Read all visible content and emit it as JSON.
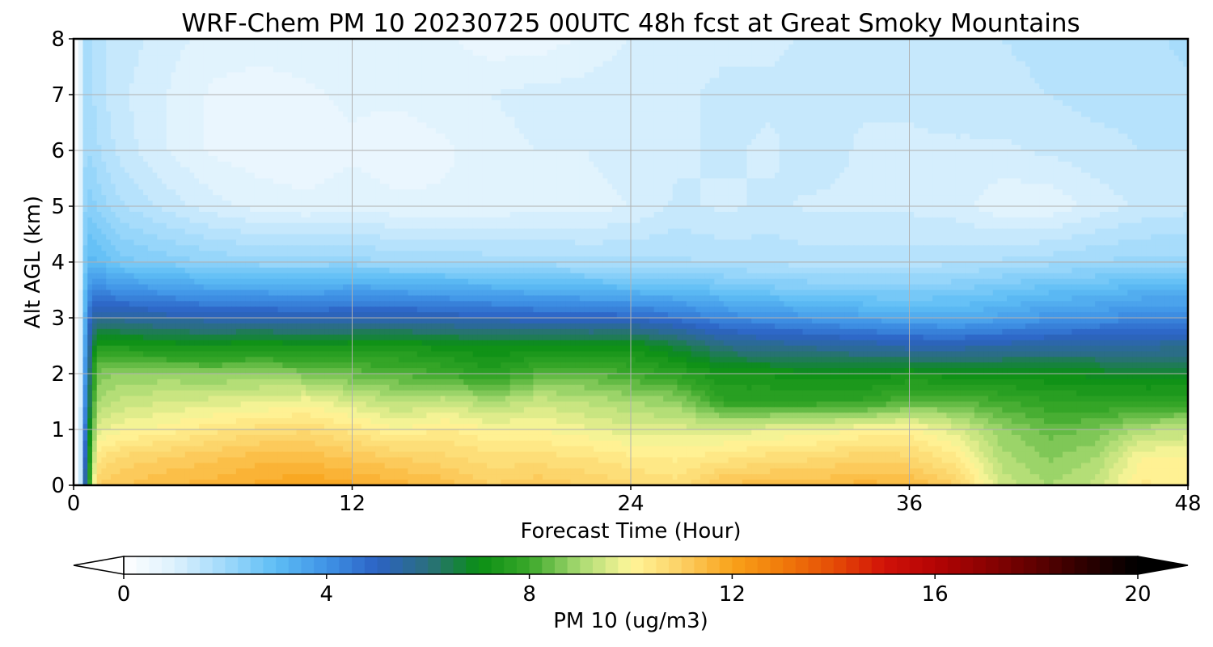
{
  "chart_data": {
    "type": "heatmap",
    "title": "WRF-Chem PM 10  20230725 00UTC 48h fcst at Great Smoky Mountains",
    "xlabel": "Forecast Time (Hour)",
    "ylabel": "Alt AGL (km)",
    "xlim": [
      0,
      48
    ],
    "ylim": [
      0,
      8
    ],
    "xticks": [
      0,
      12,
      24,
      36,
      48
    ],
    "xtick_labels": [
      "0",
      "12",
      "24",
      "36",
      "48"
    ],
    "yticks": [
      0,
      1,
      2,
      3,
      4,
      5,
      6,
      7,
      8
    ],
    "ytick_labels": [
      "0",
      "1",
      "2",
      "3",
      "4",
      "5",
      "6",
      "7",
      "8"
    ],
    "grid": true,
    "colorbar": {
      "label": "PM 10  (ug/m3)",
      "range": [
        0,
        20
      ],
      "ticks": [
        0,
        4,
        8,
        12,
        16,
        20
      ],
      "tick_labels": [
        "0",
        "4",
        "8",
        "12",
        "16",
        "20"
      ],
      "extend": "both",
      "orientation": "horizontal",
      "stops": [
        {
          "v": 0,
          "c": "#ffffff"
        },
        {
          "v": 1,
          "c": "#ddf1fd"
        },
        {
          "v": 2,
          "c": "#9fd9fb"
        },
        {
          "v": 3,
          "c": "#5ebdf5"
        },
        {
          "v": 4,
          "c": "#3f93e6"
        },
        {
          "v": 5,
          "c": "#2c62c4"
        },
        {
          "v": 6,
          "c": "#2b6f7e"
        },
        {
          "v": 7,
          "c": "#0a8f14"
        },
        {
          "v": 8,
          "c": "#3aa82a"
        },
        {
          "v": 9,
          "c": "#a9da72"
        },
        {
          "v": 10,
          "c": "#fff69a"
        },
        {
          "v": 11,
          "c": "#fcd064"
        },
        {
          "v": 12,
          "c": "#f9a21a"
        },
        {
          "v": 13,
          "c": "#f07a0a"
        },
        {
          "v": 14,
          "c": "#e54c06"
        },
        {
          "v": 15,
          "c": "#d11208"
        },
        {
          "v": 16,
          "c": "#b40404"
        },
        {
          "v": 17,
          "c": "#8c0202"
        },
        {
          "v": 18,
          "c": "#5e0101"
        },
        {
          "v": 19,
          "c": "#2b0000"
        },
        {
          "v": 20,
          "c": "#000000"
        }
      ]
    },
    "x": [
      0,
      0.25,
      0.5,
      0.75,
      1,
      2,
      4,
      6,
      8,
      10,
      12,
      14,
      16,
      18,
      20,
      22,
      24,
      26,
      28,
      30,
      32,
      34,
      36,
      38,
      40,
      42,
      44,
      46,
      48
    ],
    "y": [
      0,
      0.5,
      1,
      1.5,
      2,
      2.5,
      3,
      3.5,
      4,
      5,
      6,
      7,
      8
    ],
    "z": [
      [
        0,
        0.5,
        5.5,
        8.5,
        11.0,
        11.2,
        11.5,
        11.6,
        11.8,
        12.0,
        11.8,
        11.6,
        11.4,
        11.0,
        11.2,
        11.0,
        10.8,
        10.6,
        11.3,
        11.4,
        11.4,
        11.6,
        11.5,
        11.0,
        9.4,
        9.0,
        9.3,
        10.3,
        10.2
      ],
      [
        0,
        0.5,
        5.0,
        8.0,
        10.4,
        10.8,
        11.0,
        11.2,
        11.4,
        11.4,
        11.2,
        11.0,
        10.8,
        10.6,
        10.6,
        10.5,
        10.3,
        10.2,
        10.4,
        10.6,
        10.7,
        10.9,
        10.8,
        10.3,
        9.1,
        8.7,
        9.0,
        10.0,
        10.0
      ],
      [
        0,
        0.5,
        4.6,
        7.5,
        9.6,
        9.9,
        10.1,
        10.4,
        10.6,
        10.7,
        10.4,
        10.0,
        10.3,
        10.0,
        10.0,
        9.8,
        9.6,
        9.6,
        9.6,
        9.7,
        9.8,
        10.0,
        10.1,
        9.6,
        8.8,
        8.4,
        8.5,
        9.1,
        9.3
      ],
      [
        0,
        0.5,
        4.2,
        7.0,
        9.0,
        9.3,
        9.5,
        9.6,
        9.7,
        9.9,
        9.5,
        9.2,
        9.4,
        9.0,
        9.4,
        9.2,
        9.0,
        8.8,
        7.8,
        7.8,
        7.8,
        7.8,
        8.3,
        8.3,
        8.0,
        7.8,
        7.7,
        7.7,
        7.8
      ],
      [
        0,
        0.5,
        3.9,
        6.6,
        8.6,
        8.8,
        8.8,
        8.7,
        8.8,
        8.6,
        8.4,
        8.2,
        8.0,
        7.6,
        8.2,
        8.3,
        8.0,
        7.7,
        7.2,
        7.2,
        7.1,
        7.1,
        7.2,
        7.1,
        7.1,
        7.0,
        6.9,
        6.8,
        6.7
      ],
      [
        0,
        0.5,
        3.6,
        6.0,
        7.4,
        7.4,
        7.2,
        7.1,
        7.3,
        7.1,
        7.2,
        7.3,
        7.1,
        7.0,
        7.0,
        7.0,
        7.1,
        6.6,
        5.9,
        5.7,
        5.6,
        5.5,
        5.3,
        5.3,
        5.4,
        5.5,
        5.6,
        5.6,
        5.7
      ],
      [
        0,
        0.5,
        3.3,
        5.2,
        5.6,
        5.6,
        5.4,
        5.3,
        5.3,
        5.2,
        5.3,
        5.3,
        5.2,
        5.1,
        5.0,
        5.0,
        4.9,
        4.6,
        4.2,
        4.0,
        3.8,
        3.6,
        3.5,
        3.4,
        3.6,
        3.9,
        4.0,
        4.2,
        4.2
      ],
      [
        0,
        0.5,
        3.0,
        4.2,
        4.2,
        4.0,
        3.8,
        3.6,
        3.6,
        3.5,
        3.7,
        3.6,
        3.5,
        3.4,
        3.3,
        3.2,
        3.1,
        3.0,
        2.8,
        2.6,
        2.5,
        2.4,
        2.4,
        2.5,
        2.7,
        2.9,
        3.0,
        3.2,
        3.2
      ],
      [
        0,
        0.5,
        2.6,
        3.2,
        3.0,
        2.6,
        2.4,
        2.2,
        2.1,
        2.1,
        2.1,
        2.0,
        2.0,
        1.9,
        1.9,
        1.8,
        1.8,
        1.8,
        1.7,
        1.7,
        1.6,
        1.6,
        1.6,
        1.7,
        1.8,
        1.9,
        2.0,
        2.1,
        2.1
      ],
      [
        0,
        0.5,
        2.2,
        2.4,
        2.2,
        1.8,
        1.4,
        1.1,
        0.9,
        0.8,
        0.9,
        0.8,
        0.8,
        0.8,
        0.9,
        0.9,
        1.0,
        1.3,
        1.2,
        1.3,
        1.2,
        1.2,
        1.2,
        1.1,
        0.8,
        0.8,
        1.1,
        1.3,
        1.4
      ],
      [
        0,
        0.5,
        1.9,
        2.0,
        1.8,
        1.4,
        1.0,
        0.7,
        0.6,
        0.6,
        0.7,
        0.6,
        0.7,
        0.9,
        1.0,
        1.0,
        1.1,
        1.2,
        1.3,
        1.2,
        1.4,
        1.2,
        1.2,
        1.2,
        1.2,
        1.3,
        1.4,
        1.5,
        1.5
      ],
      [
        0,
        0.5,
        1.8,
        1.9,
        1.6,
        1.3,
        1.0,
        0.7,
        0.6,
        0.7,
        0.8,
        0.8,
        0.9,
        1.0,
        1.1,
        1.1,
        1.2,
        1.2,
        1.3,
        1.3,
        1.3,
        1.3,
        1.3,
        1.4,
        1.4,
        1.5,
        1.6,
        1.6,
        1.7
      ],
      [
        0,
        0.5,
        1.8,
        1.9,
        1.6,
        1.4,
        1.1,
        0.9,
        0.9,
        0.9,
        1.0,
        0.9,
        0.8,
        0.6,
        0.6,
        0.8,
        1.0,
        1.1,
        1.2,
        1.2,
        1.3,
        1.3,
        1.3,
        1.4,
        1.5,
        1.6,
        1.7,
        1.7,
        1.8
      ]
    ]
  }
}
